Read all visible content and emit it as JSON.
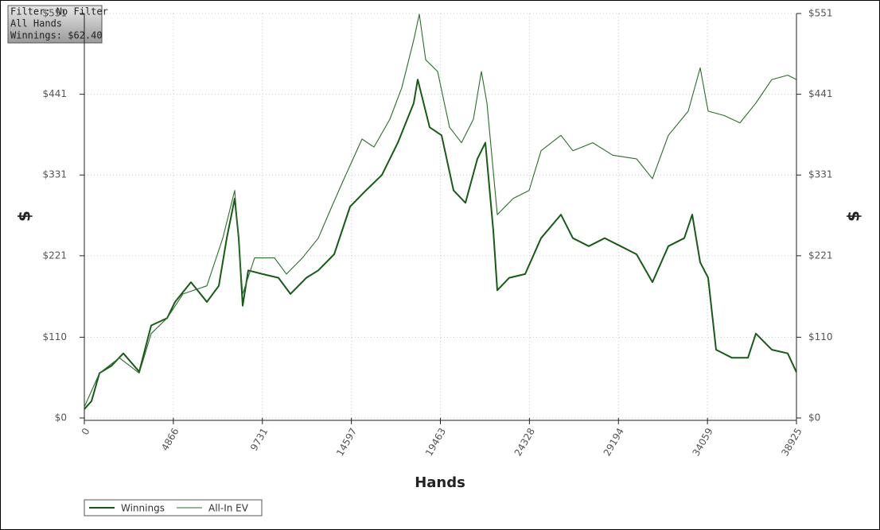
{
  "chart_data": {
    "type": "line",
    "annotations": [
      "Filter: No Filter",
      "All Hands",
      "Winnings: $62.40"
    ],
    "xlabel": "Hands",
    "ylabel": "$",
    "xlim": [
      0,
      38925
    ],
    "ylim": [
      0,
      551
    ],
    "xticks": [
      0,
      4866,
      9731,
      14597,
      19463,
      24328,
      29194,
      34059,
      38925
    ],
    "yticks": [
      {
        "value": 0,
        "label": "$0"
      },
      {
        "value": 110,
        "label": "$110"
      },
      {
        "value": 221,
        "label": "$221"
      },
      {
        "value": 331,
        "label": "$331"
      },
      {
        "value": 441,
        "label": "$441"
      },
      {
        "value": 551,
        "label": "$551"
      }
    ],
    "grid": true,
    "legend": "bottom-left",
    "series": [
      {
        "name": "Winnings",
        "color": "#155c15",
        "x": [
          0,
          391,
          826,
          1479,
          2131,
          3001,
          3653,
          4523,
          4958,
          5828,
          6697,
          7350,
          7785,
          8220,
          8437,
          8655,
          8959,
          9742,
          10611,
          11264,
          12134,
          12786,
          13656,
          14526,
          15396,
          16265,
          17135,
          18005,
          18222,
          18875,
          19527,
          20180,
          20832,
          21484,
          21919,
          22354,
          22572,
          23224,
          24094,
          24964,
          26051,
          26704,
          27573,
          28443,
          29313,
          30183,
          31052,
          31922,
          32792,
          33227,
          33662,
          34097,
          34532,
          35402,
          36272,
          36707,
          37576,
          38446,
          38925
        ],
        "values": [
          12,
          23,
          61,
          71,
          88,
          63,
          126,
          136,
          158,
          185,
          158,
          180,
          245,
          299,
          245,
          153,
          201,
          196,
          191,
          169,
          191,
          201,
          223,
          288,
          310,
          331,
          375,
          429,
          461,
          396,
          385,
          310,
          293,
          353,
          375,
          255,
          174,
          191,
          196,
          245,
          277,
          245,
          234,
          245,
          234,
          223,
          185,
          234,
          245,
          277,
          212,
          191,
          93,
          82,
          82,
          115,
          93,
          88,
          62.4
        ]
      },
      {
        "name": "All-In EV",
        "color": "#2a6e2a",
        "x": [
          0,
          826,
          1914,
          3001,
          3653,
          4523,
          5393,
          6697,
          7567,
          8220,
          8655,
          9307,
          10394,
          11047,
          11916,
          12786,
          13439,
          14091,
          15178,
          15831,
          16701,
          17353,
          18005,
          18310,
          18658,
          19310,
          19962,
          20615,
          21267,
          21702,
          22006,
          22572,
          23442,
          24311,
          24964,
          26051,
          26704,
          27790,
          28878,
          30183,
          31052,
          31922,
          33009,
          33662,
          34097,
          34967,
          35837,
          36707,
          37576,
          38446,
          38925
        ],
        "values": [
          15,
          61,
          82,
          61,
          115,
          136,
          169,
          180,
          245,
          310,
          169,
          218,
          218,
          196,
          218,
          245,
          283,
          320,
          380,
          369,
          407,
          450,
          515,
          550,
          488,
          472,
          396,
          375,
          407,
          472,
          429,
          277,
          299,
          310,
          364,
          385,
          364,
          375,
          358,
          353,
          326,
          385,
          418,
          477,
          418,
          412,
          402,
          429,
          461,
          467,
          461
        ]
      }
    ]
  }
}
